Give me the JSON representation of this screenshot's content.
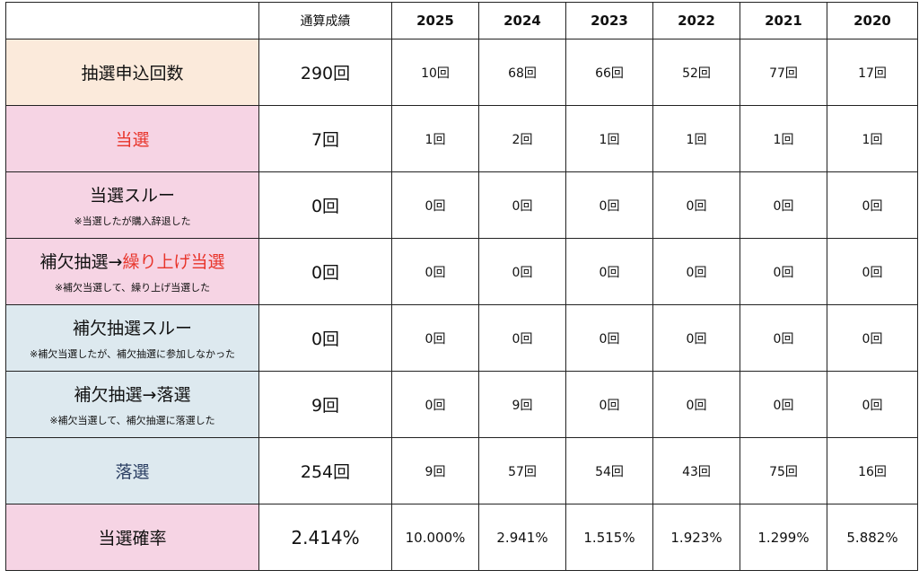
{
  "header": {
    "total": "通算成績",
    "years": [
      "2025",
      "2024",
      "2023",
      "2022",
      "2021",
      "2020"
    ]
  },
  "rows": [
    {
      "label_parts": [
        {
          "text": "抽選申込回数",
          "color": ""
        }
      ],
      "note": "",
      "bg": "#fbeadb",
      "total": "290回",
      "values": [
        "10回",
        "68回",
        "66回",
        "52回",
        "77回",
        "17回"
      ]
    },
    {
      "label_parts": [
        {
          "text": "当選",
          "color": "red"
        }
      ],
      "note": "",
      "bg": "#f6d4e4",
      "total": "7回",
      "values": [
        "1回",
        "2回",
        "1回",
        "1回",
        "1回",
        "1回"
      ]
    },
    {
      "label_parts": [
        {
          "text": "当選スルー",
          "color": ""
        }
      ],
      "note": "※当選したが購入辞退した",
      "bg": "#f6d4e4",
      "total": "0回",
      "values": [
        "0回",
        "0回",
        "0回",
        "0回",
        "0回",
        "0回"
      ]
    },
    {
      "label_parts": [
        {
          "text": "補欠抽選→",
          "color": ""
        },
        {
          "text": "繰り上げ当選",
          "color": "red"
        }
      ],
      "note": "※補欠当選して、繰り上げ当選した",
      "bg": "#f6d4e4",
      "total": "0回",
      "values": [
        "0回",
        "0回",
        "0回",
        "0回",
        "0回",
        "0回"
      ]
    },
    {
      "label_parts": [
        {
          "text": "補欠抽選スルー",
          "color": ""
        }
      ],
      "note": "※補欠当選したが、補欠抽選に参加しなかった",
      "bg": "#dde9ef",
      "total": "0回",
      "values": [
        "0回",
        "0回",
        "0回",
        "0回",
        "0回",
        "0回"
      ]
    },
    {
      "label_parts": [
        {
          "text": "補欠抽選→落選",
          "color": ""
        }
      ],
      "note": "※補欠当選して、補欠抽選に落選した",
      "bg": "#dde9ef",
      "total": "9回",
      "values": [
        "0回",
        "9回",
        "0回",
        "0回",
        "0回",
        "0回"
      ]
    },
    {
      "label_parts": [
        {
          "text": "落選",
          "color": "navy"
        }
      ],
      "note": "",
      "bg": "#dde9ef",
      "total": "254回",
      "values": [
        "9回",
        "57回",
        "54回",
        "43回",
        "75回",
        "16回"
      ]
    },
    {
      "label_parts": [
        {
          "text": "当選確率",
          "color": ""
        }
      ],
      "note": "",
      "bg": "#f6d4e4",
      "total": "2.414%",
      "values": [
        "10.000%",
        "2.941%",
        "1.515%",
        "1.923%",
        "1.299%",
        "5.882%"
      ]
    }
  ]
}
